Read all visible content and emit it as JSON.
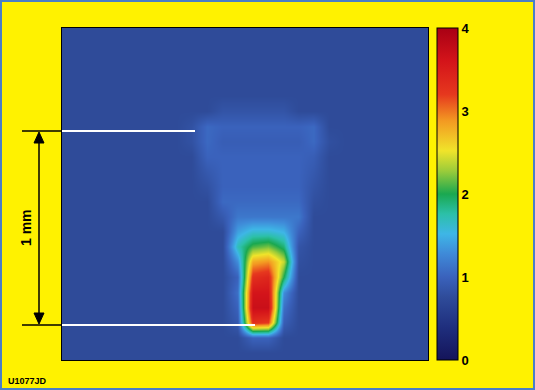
{
  "chart_data": {
    "type": "heatmap",
    "annotations": [
      "1 mm",
      "U1077JD"
    ],
    "tick_labels": false,
    "colorbar_range": [
      0,
      4
    ],
    "colorbar_ticks": [
      0,
      1,
      2,
      3,
      4
    ],
    "z": [
      [
        0.75,
        0.75,
        0.75,
        0.75,
        0.75,
        0.75,
        0.75,
        0.75,
        0.75,
        0.75,
        0.75,
        0.75,
        0.75,
        0.75,
        0.75,
        0.75,
        0.75,
        0.75,
        0.75,
        0.75,
        0.75,
        0.75,
        0.75,
        0.75
      ],
      [
        0.75,
        0.75,
        0.75,
        0.75,
        0.75,
        0.75,
        0.75,
        0.75,
        0.75,
        0.75,
        0.75,
        0.75,
        0.75,
        0.75,
        0.75,
        0.75,
        0.75,
        0.75,
        0.75,
        0.75,
        0.75,
        0.75,
        0.75,
        0.75
      ],
      [
        0.75,
        0.75,
        0.75,
        0.75,
        0.75,
        0.75,
        0.75,
        0.75,
        0.75,
        0.75,
        0.75,
        0.75,
        0.75,
        0.75,
        0.75,
        0.75,
        0.75,
        0.75,
        0.75,
        0.75,
        0.75,
        0.75,
        0.75,
        0.75
      ],
      [
        0.75,
        0.75,
        0.75,
        0.75,
        0.75,
        0.75,
        0.75,
        0.75,
        0.75,
        0.75,
        0.75,
        0.75,
        0.75,
        0.75,
        0.75,
        0.75,
        0.75,
        0.75,
        0.75,
        0.75,
        0.75,
        0.75,
        0.75,
        0.75
      ],
      [
        0.75,
        0.75,
        0.75,
        0.75,
        0.75,
        0.75,
        0.75,
        0.75,
        0.75,
        0.75,
        0.75,
        0.75,
        0.75,
        0.75,
        0.75,
        0.75,
        0.75,
        0.75,
        0.75,
        0.75,
        0.75,
        0.75,
        0.75,
        0.75
      ],
      [
        0.75,
        0.75,
        0.75,
        0.75,
        0.75,
        0.75,
        0.75,
        0.75,
        0.75,
        0.75,
        0.85,
        0.85,
        0.85,
        0.85,
        0.85,
        0.75,
        0.75,
        0.75,
        0.75,
        0.75,
        0.75,
        0.75,
        0.75,
        0.75
      ],
      [
        0.75,
        0.75,
        0.75,
        0.75,
        0.75,
        0.75,
        0.75,
        0.75,
        0.82,
        1.05,
        1.0,
        1.0,
        1.0,
        1.0,
        1.0,
        1.0,
        1.05,
        0.75,
        0.75,
        0.75,
        0.75,
        0.75,
        0.75,
        0.75
      ],
      [
        0.75,
        0.75,
        0.75,
        0.75,
        0.75,
        0.75,
        0.75,
        0.75,
        0.82,
        1.05,
        0.95,
        0.95,
        0.95,
        0.95,
        0.95,
        0.95,
        1.05,
        0.8,
        0.75,
        0.75,
        0.75,
        0.75,
        0.75,
        0.75
      ],
      [
        0.75,
        0.75,
        0.75,
        0.75,
        0.75,
        0.75,
        0.75,
        0.75,
        0.75,
        1.0,
        1.0,
        1.0,
        1.0,
        1.0,
        1.0,
        1.0,
        0.95,
        0.75,
        0.75,
        0.75,
        0.75,
        0.75,
        0.75,
        0.75
      ],
      [
        0.75,
        0.75,
        0.75,
        0.75,
        0.75,
        0.75,
        0.75,
        0.75,
        0.75,
        0.9,
        1.0,
        1.0,
        1.0,
        1.0,
        1.0,
        1.0,
        0.9,
        0.75,
        0.75,
        0.75,
        0.75,
        0.75,
        0.75,
        0.75
      ],
      [
        0.75,
        0.75,
        0.75,
        0.75,
        0.75,
        0.75,
        0.75,
        0.75,
        0.75,
        0.82,
        1.0,
        1.0,
        1.0,
        1.0,
        1.0,
        1.0,
        0.85,
        0.75,
        0.75,
        0.75,
        0.75,
        0.75,
        0.75,
        0.75
      ],
      [
        0.75,
        0.75,
        0.75,
        0.75,
        0.75,
        0.75,
        0.75,
        0.75,
        0.75,
        0.75,
        1.05,
        1.05,
        1.05,
        1.05,
        1.05,
        1.05,
        0.8,
        0.75,
        0.75,
        0.75,
        0.75,
        0.75,
        0.75,
        0.75
      ],
      [
        0.75,
        0.75,
        0.75,
        0.75,
        0.75,
        0.75,
        0.75,
        0.75,
        0.75,
        0.75,
        0.9,
        1.15,
        1.15,
        1.15,
        1.15,
        1.15,
        0.75,
        0.75,
        0.75,
        0.75,
        0.75,
        0.75,
        0.75,
        0.75
      ],
      [
        0.75,
        0.75,
        0.75,
        0.75,
        0.75,
        0.75,
        0.75,
        0.75,
        0.75,
        0.75,
        0.75,
        1.4,
        1.6,
        1.6,
        1.5,
        1.0,
        0.75,
        0.75,
        0.75,
        0.75,
        0.75,
        0.75,
        0.75,
        0.75
      ],
      [
        0.75,
        0.75,
        0.75,
        0.75,
        0.75,
        0.75,
        0.75,
        0.75,
        0.75,
        0.75,
        0.75,
        1.7,
        2.1,
        2.2,
        1.9,
        0.85,
        0.75,
        0.75,
        0.75,
        0.75,
        0.75,
        0.75,
        0.75,
        0.75
      ],
      [
        0.75,
        0.75,
        0.75,
        0.75,
        0.75,
        0.75,
        0.75,
        0.75,
        0.75,
        0.75,
        0.75,
        1.3,
        2.8,
        2.9,
        2.4,
        0.8,
        0.75,
        0.75,
        0.75,
        0.75,
        0.75,
        0.75,
        0.75,
        0.75
      ],
      [
        0.75,
        0.75,
        0.75,
        0.75,
        0.75,
        0.75,
        0.75,
        0.75,
        0.75,
        0.75,
        0.75,
        1.0,
        3.3,
        3.4,
        2.0,
        0.75,
        0.75,
        0.75,
        0.75,
        0.75,
        0.75,
        0.75,
        0.75,
        0.75
      ],
      [
        0.75,
        0.75,
        0.75,
        0.75,
        0.75,
        0.75,
        0.75,
        0.75,
        0.75,
        0.75,
        0.75,
        1.1,
        3.6,
        3.6,
        1.3,
        0.75,
        0.75,
        0.75,
        0.75,
        0.75,
        0.75,
        0.75,
        0.75,
        0.75
      ],
      [
        0.75,
        0.75,
        0.75,
        0.75,
        0.75,
        0.75,
        0.75,
        0.75,
        0.75,
        0.75,
        0.75,
        1.0,
        3.7,
        3.7,
        1.1,
        0.75,
        0.75,
        0.75,
        0.75,
        0.75,
        0.75,
        0.75,
        0.75,
        0.75
      ],
      [
        0.75,
        0.75,
        0.75,
        0.75,
        0.75,
        0.75,
        0.75,
        0.75,
        0.75,
        0.75,
        0.75,
        0.9,
        3.3,
        3.2,
        0.95,
        0.75,
        0.75,
        0.75,
        0.75,
        0.75,
        0.75,
        0.75,
        0.75,
        0.75
      ],
      [
        0.75,
        0.75,
        0.75,
        0.75,
        0.75,
        0.75,
        0.75,
        0.75,
        0.75,
        0.75,
        0.75,
        0.75,
        1.0,
        1.0,
        0.75,
        0.75,
        0.75,
        0.75,
        0.75,
        0.75,
        0.75,
        0.75,
        0.75,
        0.75
      ],
      [
        0.75,
        0.75,
        0.75,
        0.75,
        0.75,
        0.75,
        0.75,
        0.75,
        0.75,
        0.75,
        0.75,
        0.75,
        0.75,
        0.75,
        0.75,
        0.75,
        0.75,
        0.75,
        0.75,
        0.75,
        0.75,
        0.75,
        0.75,
        0.75
      ]
    ]
  }
}
